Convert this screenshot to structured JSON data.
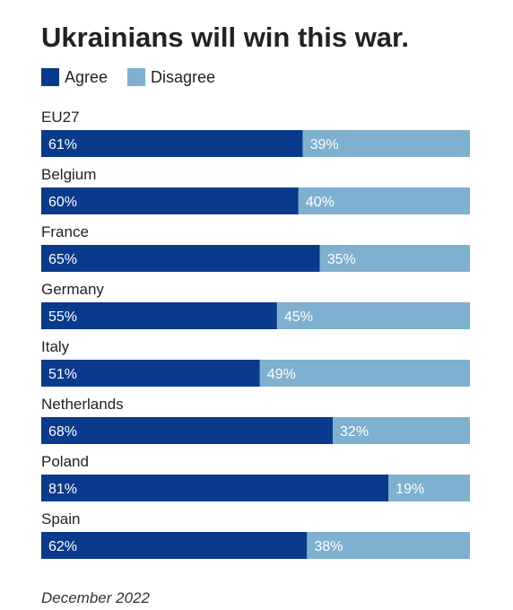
{
  "title": "Ukrainians will win this war.",
  "footer": "December 2022",
  "colors": {
    "agree": "#0a3a8c",
    "disagree": "#7fb0d0",
    "text": "#222222",
    "background": "#ffffff"
  },
  "chart_data": {
    "type": "bar",
    "orientation": "horizontal",
    "stacked": true,
    "normalized_percent": true,
    "title": "Ukrainians will win this war.",
    "legend_position": "top-left",
    "grid": false,
    "xlim": [
      0,
      100
    ],
    "categories": [
      "EU27",
      "Belgium",
      "France",
      "Germany",
      "Italy",
      "Netherlands",
      "Poland",
      "Spain"
    ],
    "series": [
      {
        "name": "Agree",
        "color": "#0a3a8c",
        "values": [
          61,
          60,
          65,
          55,
          51,
          68,
          81,
          62
        ],
        "labels": [
          "61%",
          "60%",
          "65%",
          "55%",
          "51%",
          "68%",
          "81%",
          "62%"
        ]
      },
      {
        "name": "Disagree",
        "color": "#7fb0d0",
        "values": [
          39,
          40,
          35,
          45,
          49,
          32,
          19,
          38
        ],
        "labels": [
          "39%",
          "40%",
          "35%",
          "45%",
          "49%",
          "32%",
          "19%",
          "38%"
        ]
      }
    ]
  }
}
